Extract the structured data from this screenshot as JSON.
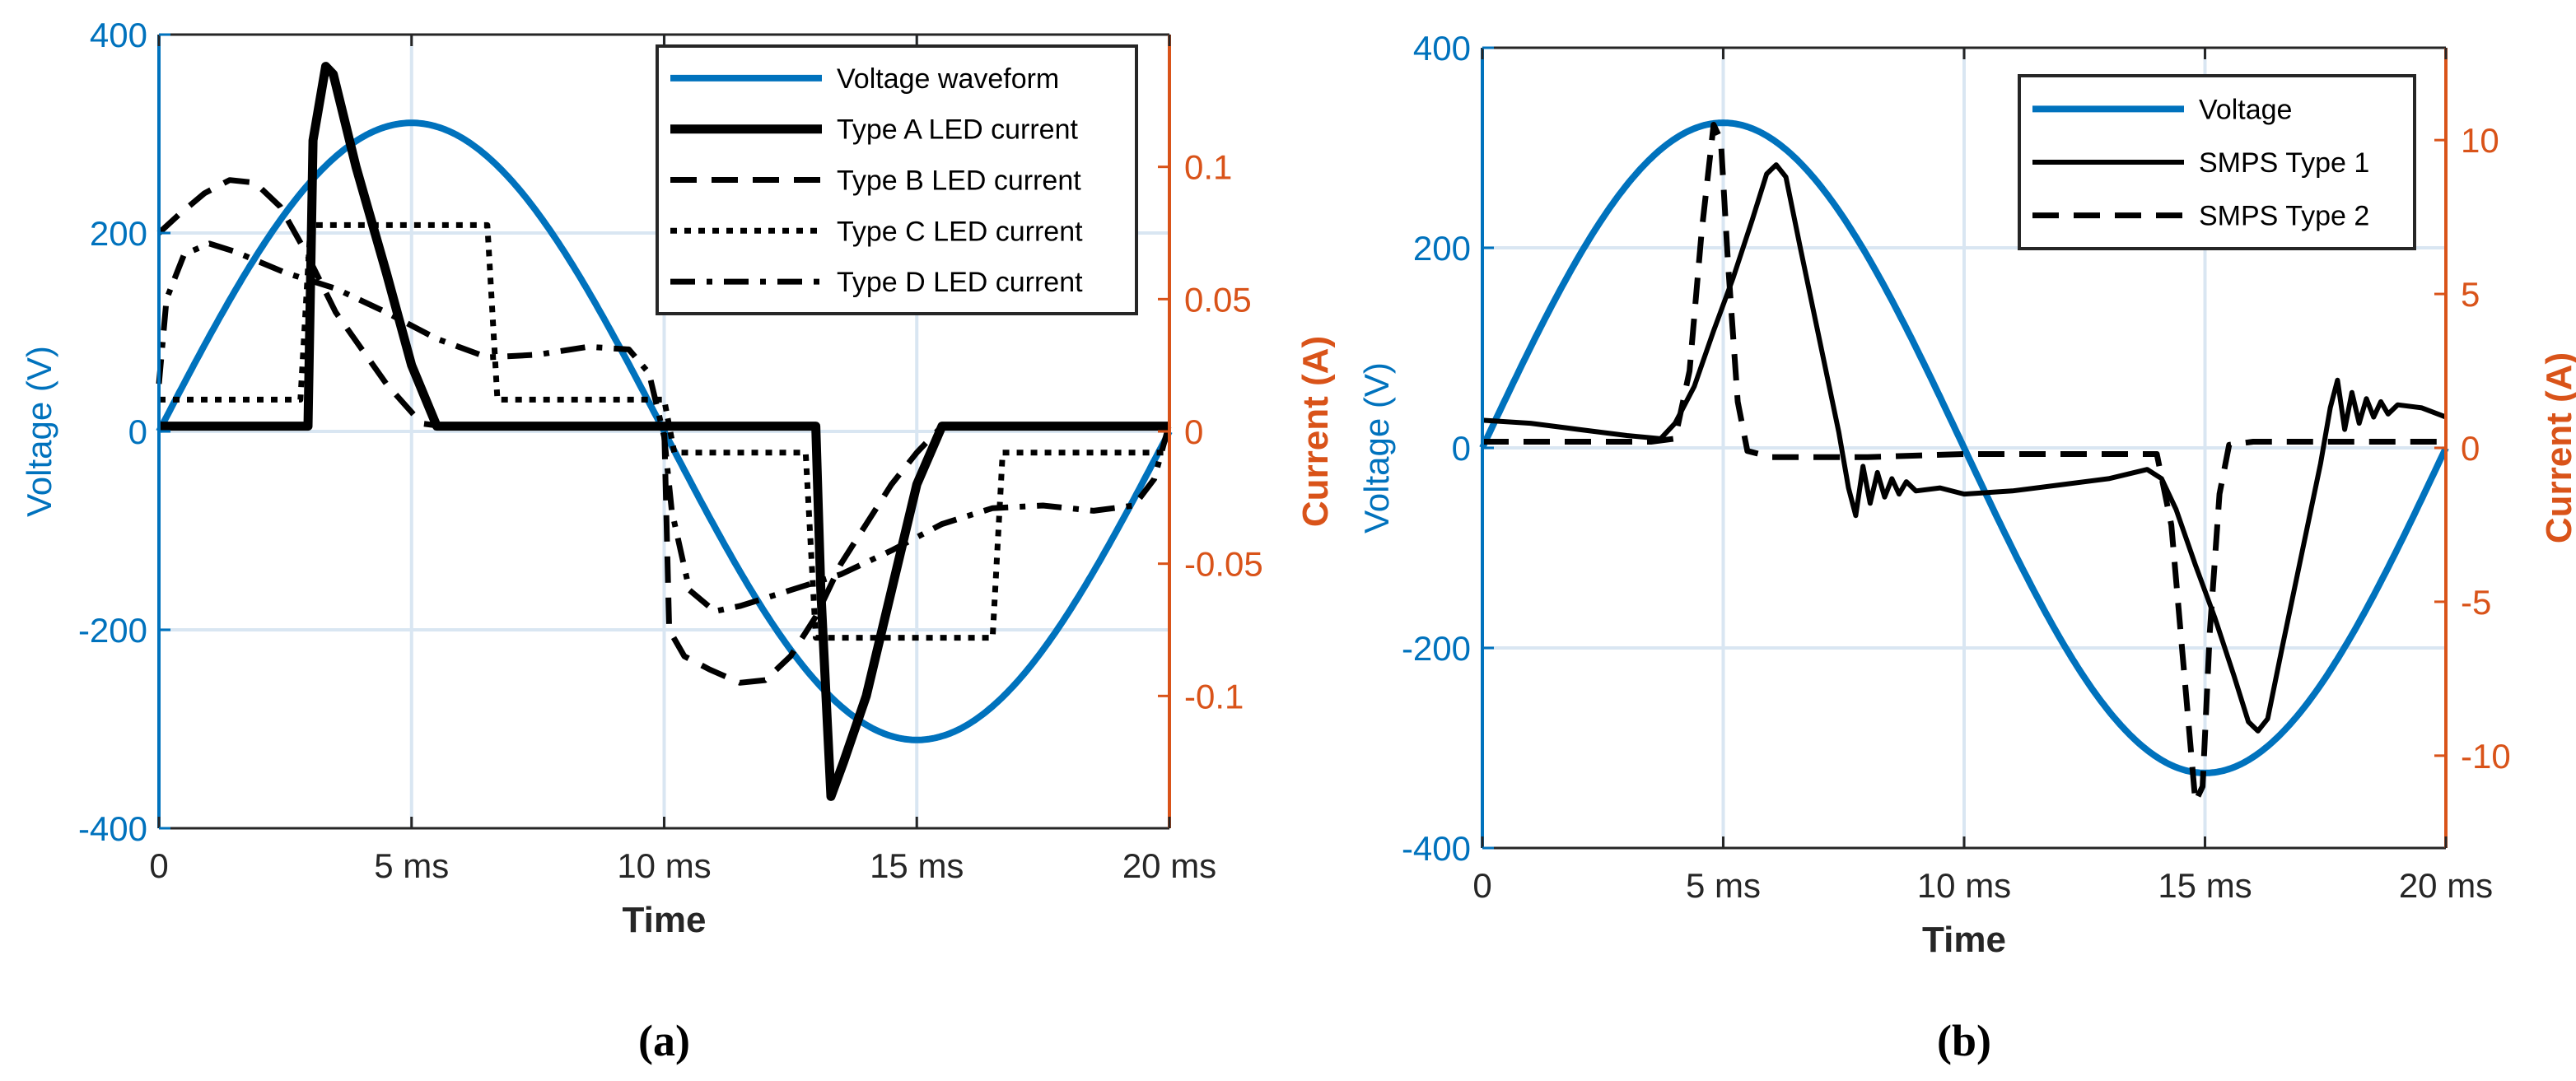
{
  "colors": {
    "voltage": "#0072BD",
    "current_axis": "#D95319",
    "grid": "#d9e6f2",
    "ink": "#000000"
  },
  "chart_data": [
    {
      "type": "line",
      "caption": "(a)",
      "xlabel": "Time",
      "ylabel_left": "Voltage (V)",
      "ylabel_right": "Current (A)",
      "xlim": [
        0,
        20
      ],
      "ylim_left": [
        -400,
        400
      ],
      "ylim_right": [
        -0.15,
        0.15
      ],
      "x_ticks": [
        0,
        5,
        10,
        15,
        20
      ],
      "x_tick_labels": [
        "0",
        "5 ms",
        "10 ms",
        "15 ms",
        "20 ms"
      ],
      "y_left_ticks": [
        -400,
        -200,
        0,
        200,
        400
      ],
      "y_left_tick_labels": [
        "-400",
        "-200",
        "0",
        "200",
        "400"
      ],
      "y_right_ticks": [
        -0.1,
        -0.05,
        0,
        0.05,
        0.1
      ],
      "y_right_tick_labels": [
        "-0.1",
        "-0.05",
        "0",
        "0.05",
        "0.1"
      ],
      "legend_position": "top-right",
      "series": [
        {
          "name": "Voltage waveform",
          "axis": "left",
          "style": "voltage",
          "fn": "sine",
          "amplitude": 311,
          "period_ms": 20
        },
        {
          "name": "Type A LED current",
          "axis": "right",
          "style": "thick",
          "points": [
            [
              0,
              0.002
            ],
            [
              2.95,
              0.002
            ],
            [
              3.05,
              0.11
            ],
            [
              3.3,
              0.138
            ],
            [
              3.45,
              0.135
            ],
            [
              3.9,
              0.1
            ],
            [
              4.5,
              0.06
            ],
            [
              5.0,
              0.025
            ],
            [
              5.5,
              0.002
            ],
            [
              13.0,
              0.002
            ],
            [
              13.1,
              -0.06
            ],
            [
              13.3,
              -0.138
            ],
            [
              13.55,
              -0.125
            ],
            [
              14.0,
              -0.1
            ],
            [
              14.5,
              -0.06
            ],
            [
              15.0,
              -0.02
            ],
            [
              15.5,
              0.002
            ],
            [
              20,
              0.002
            ]
          ]
        },
        {
          "name": "Type B LED current",
          "axis": "right",
          "style": "dashed",
          "points": [
            [
              0,
              0.075
            ],
            [
              0.4,
              0.082
            ],
            [
              0.9,
              0.09
            ],
            [
              1.4,
              0.095
            ],
            [
              1.9,
              0.094
            ],
            [
              2.4,
              0.085
            ],
            [
              2.9,
              0.068
            ],
            [
              3.5,
              0.045
            ],
            [
              4.5,
              0.018
            ],
            [
              5.2,
              0.003
            ],
            [
              5.6,
              0.002
            ],
            [
              10.0,
              0.002
            ],
            [
              10.1,
              -0.075
            ],
            [
              10.4,
              -0.085
            ],
            [
              10.9,
              -0.09
            ],
            [
              11.5,
              -0.095
            ],
            [
              12.0,
              -0.094
            ],
            [
              12.5,
              -0.085
            ],
            [
              13.0,
              -0.07
            ],
            [
              13.5,
              -0.05
            ],
            [
              14.0,
              -0.035
            ],
            [
              14.5,
              -0.02
            ],
            [
              15.0,
              -0.008
            ],
            [
              15.5,
              0.002
            ],
            [
              20,
              0.002
            ]
          ]
        },
        {
          "name": "Type C LED current",
          "axis": "right",
          "style": "dotted",
          "points": [
            [
              0,
              0.012
            ],
            [
              2.8,
              0.012
            ],
            [
              3.0,
              0.078
            ],
            [
              6.5,
              0.078
            ],
            [
              6.7,
              0.012
            ],
            [
              10.0,
              0.012
            ],
            [
              10.2,
              -0.008
            ],
            [
              12.8,
              -0.008
            ],
            [
              13.0,
              -0.078
            ],
            [
              16.5,
              -0.078
            ],
            [
              16.7,
              -0.008
            ],
            [
              20,
              -0.008
            ]
          ]
        },
        {
          "name": "Type D LED current",
          "axis": "right",
          "style": "dashdot",
          "points": [
            [
              0,
              0.018
            ],
            [
              0.15,
              0.05
            ],
            [
              0.5,
              0.067
            ],
            [
              1.0,
              0.071
            ],
            [
              1.5,
              0.068
            ],
            [
              2.5,
              0.06
            ],
            [
              3.5,
              0.054
            ],
            [
              4.5,
              0.045
            ],
            [
              5.5,
              0.035
            ],
            [
              6.5,
              0.028
            ],
            [
              7.5,
              0.029
            ],
            [
              8.5,
              0.032
            ],
            [
              9.3,
              0.031
            ],
            [
              9.7,
              0.022
            ],
            [
              10.0,
              -0.002
            ],
            [
              10.15,
              -0.03
            ],
            [
              10.5,
              -0.06
            ],
            [
              11.0,
              -0.068
            ],
            [
              11.5,
              -0.066
            ],
            [
              12.5,
              -0.06
            ],
            [
              13.5,
              -0.054
            ],
            [
              14.5,
              -0.045
            ],
            [
              15.5,
              -0.035
            ],
            [
              16.5,
              -0.029
            ],
            [
              17.5,
              -0.028
            ],
            [
              18.5,
              -0.03
            ],
            [
              19.3,
              -0.028
            ],
            [
              19.7,
              -0.018
            ],
            [
              20,
              0.003
            ]
          ]
        }
      ]
    },
    {
      "type": "line",
      "caption": "(b)",
      "xlabel": "Time",
      "ylabel_left": "Voltage (V)",
      "ylabel_right": "Current (A)",
      "xlim": [
        0,
        20
      ],
      "ylim_left": [
        -400,
        400
      ],
      "ylim_right": [
        -13,
        13
      ],
      "x_ticks": [
        0,
        5,
        10,
        15,
        20
      ],
      "x_tick_labels": [
        "0",
        "5 ms",
        "10 ms",
        "15 ms",
        "20 ms"
      ],
      "y_left_ticks": [
        -400,
        -200,
        0,
        200,
        400
      ],
      "y_left_tick_labels": [
        "-400",
        "-200",
        "0",
        "200",
        "400"
      ],
      "y_right_ticks": [
        -10,
        -5,
        0,
        5,
        10
      ],
      "y_right_tick_labels": [
        "-10",
        "-5",
        "0",
        "5",
        "10"
      ],
      "legend_position": "top-right",
      "series": [
        {
          "name": "Voltage",
          "axis": "left",
          "style": "voltage",
          "fn": "sine",
          "amplitude": 325,
          "period_ms": 20
        },
        {
          "name": "SMPS Type 1",
          "axis": "right",
          "style": "solid",
          "points": [
            [
              0,
              0.9
            ],
            [
              1,
              0.8
            ],
            [
              2,
              0.6
            ],
            [
              3,
              0.4
            ],
            [
              3.7,
              0.3
            ],
            [
              4.0,
              0.8
            ],
            [
              4.4,
              2.0
            ],
            [
              4.8,
              3.8
            ],
            [
              5.2,
              5.5
            ],
            [
              5.6,
              7.4
            ],
            [
              5.9,
              8.9
            ],
            [
              6.1,
              9.2
            ],
            [
              6.3,
              8.8
            ],
            [
              6.6,
              6.5
            ],
            [
              7.0,
              3.5
            ],
            [
              7.4,
              0.5
            ],
            [
              7.6,
              -1.3
            ],
            [
              7.75,
              -2.2
            ],
            [
              7.9,
              -0.6
            ],
            [
              8.05,
              -1.8
            ],
            [
              8.2,
              -0.8
            ],
            [
              8.35,
              -1.6
            ],
            [
              8.5,
              -1.0
            ],
            [
              8.65,
              -1.5
            ],
            [
              8.8,
              -1.1
            ],
            [
              9.0,
              -1.4
            ],
            [
              9.5,
              -1.3
            ],
            [
              10,
              -1.5
            ],
            [
              11,
              -1.4
            ],
            [
              12,
              -1.2
            ],
            [
              13,
              -1.0
            ],
            [
              13.8,
              -0.7
            ],
            [
              14.1,
              -1.0
            ],
            [
              14.4,
              -2.0
            ],
            [
              14.8,
              -3.8
            ],
            [
              15.2,
              -5.5
            ],
            [
              15.6,
              -7.4
            ],
            [
              15.9,
              -8.9
            ],
            [
              16.1,
              -9.2
            ],
            [
              16.3,
              -8.8
            ],
            [
              16.6,
              -6.5
            ],
            [
              17.0,
              -3.5
            ],
            [
              17.4,
              -0.5
            ],
            [
              17.6,
              1.3
            ],
            [
              17.75,
              2.2
            ],
            [
              17.9,
              0.6
            ],
            [
              18.05,
              1.8
            ],
            [
              18.2,
              0.8
            ],
            [
              18.35,
              1.6
            ],
            [
              18.5,
              1.0
            ],
            [
              18.65,
              1.5
            ],
            [
              18.8,
              1.1
            ],
            [
              19.0,
              1.4
            ],
            [
              19.5,
              1.3
            ],
            [
              20,
              1.0
            ]
          ]
        },
        {
          "name": "SMPS Type 2",
          "axis": "right",
          "style": "dashed",
          "points": [
            [
              0,
              0.2
            ],
            [
              3.5,
              0.2
            ],
            [
              4.0,
              0.3
            ],
            [
              4.3,
              2.5
            ],
            [
              4.55,
              7.0
            ],
            [
              4.8,
              10.5
            ],
            [
              4.95,
              10.0
            ],
            [
              5.1,
              6.0
            ],
            [
              5.3,
              1.5
            ],
            [
              5.5,
              -0.1
            ],
            [
              6,
              -0.3
            ],
            [
              8,
              -0.3
            ],
            [
              10,
              -0.2
            ],
            [
              12,
              -0.2
            ],
            [
              14,
              -0.2
            ],
            [
              14.3,
              -2.5
            ],
            [
              14.55,
              -7.0
            ],
            [
              14.8,
              -11.5
            ],
            [
              14.95,
              -11.0
            ],
            [
              15.1,
              -6.0
            ],
            [
              15.3,
              -1.5
            ],
            [
              15.5,
              0.1
            ],
            [
              16,
              0.2
            ],
            [
              20,
              0.2
            ]
          ]
        }
      ]
    }
  ]
}
